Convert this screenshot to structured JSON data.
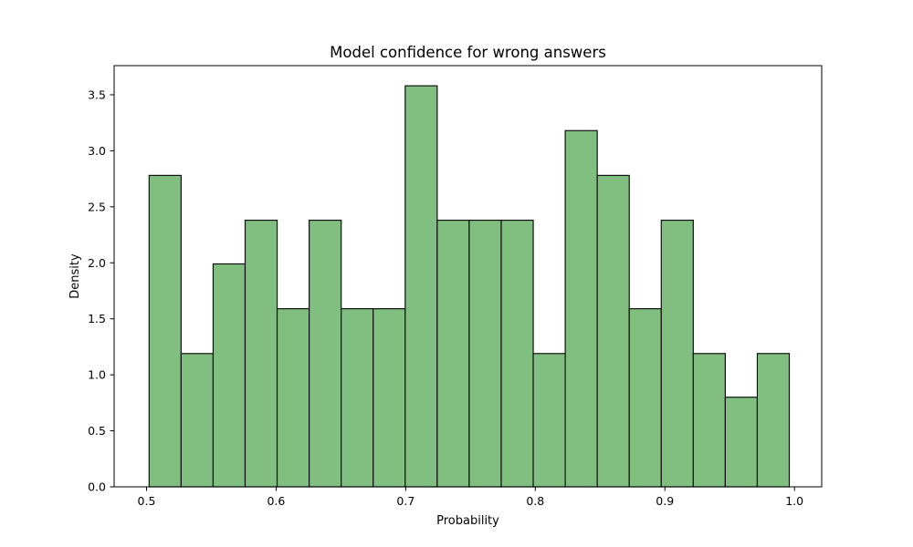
{
  "chart_data": {
    "type": "bar",
    "title": "Model confidence for wrong answers",
    "xlabel": "Probability",
    "ylabel": "Density",
    "xlim": [
      0.475,
      1.021
    ],
    "ylim": [
      0,
      3.76
    ],
    "xticks": [
      "0.5",
      "0.6",
      "0.7",
      "0.8",
      "0.9",
      "1.0"
    ],
    "yticks": [
      "0.0",
      "0.5",
      "1.0",
      "1.5",
      "2.0",
      "2.5",
      "3.0",
      "3.5"
    ],
    "grid": false,
    "bin_edges": [
      0.502,
      0.5267,
      0.5514,
      0.5761,
      0.6008,
      0.6255,
      0.6502,
      0.6749,
      0.6996,
      0.7243,
      0.749,
      0.7737,
      0.7984,
      0.8231,
      0.8478,
      0.8725,
      0.8972,
      0.9219,
      0.9466,
      0.9713,
      0.996
    ],
    "values": [
      2.78,
      1.19,
      1.99,
      2.38,
      1.59,
      2.38,
      1.59,
      1.59,
      3.58,
      2.38,
      2.38,
      2.38,
      1.19,
      3.18,
      2.78,
      1.59,
      2.38,
      1.19,
      0.8,
      1.19
    ],
    "colors": {
      "bar_fill": "#80bf80",
      "bar_edge": "#111111"
    }
  }
}
